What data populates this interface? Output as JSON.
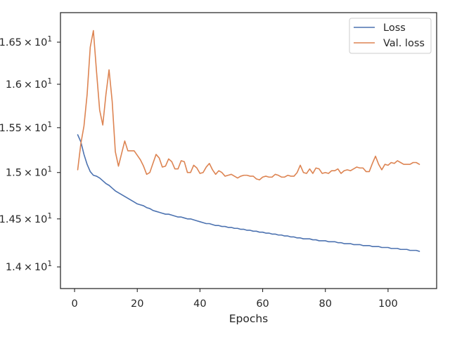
{
  "chart_data": {
    "type": "line",
    "xlabel": "Epochs",
    "ylabel": "",
    "yscale": "log",
    "xlim": [
      -4.5,
      115.5
    ],
    "ylim": [
      13.78,
      16.86
    ],
    "grid": false,
    "legend_position": "top-right",
    "x_ticks": [
      0,
      20,
      40,
      60,
      80,
      100
    ],
    "x_tick_labels": [
      "0",
      "20",
      "40",
      "60",
      "80",
      "100"
    ],
    "y_ticks": [
      14.0,
      14.5,
      15.0,
      15.5,
      16.0,
      16.5
    ],
    "y_tick_labels": [
      {
        "mantissa": "1.4",
        "base": "10",
        "exp": "1"
      },
      {
        "mantissa": "1.45",
        "base": "10",
        "exp": "1"
      },
      {
        "mantissa": "1.5",
        "base": "10",
        "exp": "1"
      },
      {
        "mantissa": "1.55",
        "base": "10",
        "exp": "1"
      },
      {
        "mantissa": "1.6",
        "base": "10",
        "exp": "1"
      },
      {
        "mantissa": "1.65",
        "base": "10",
        "exp": "1"
      }
    ],
    "x_start": 1,
    "series": [
      {
        "name": "Loss",
        "color": "#4c72b0",
        "values": [
          15.42,
          15.34,
          15.2,
          15.09,
          15.01,
          14.97,
          14.96,
          14.94,
          14.91,
          14.88,
          14.86,
          14.83,
          14.8,
          14.78,
          14.76,
          14.74,
          14.72,
          14.7,
          14.68,
          14.66,
          14.65,
          14.64,
          14.62,
          14.61,
          14.59,
          14.58,
          14.57,
          14.56,
          14.55,
          14.55,
          14.54,
          14.53,
          14.52,
          14.52,
          14.51,
          14.5,
          14.5,
          14.49,
          14.48,
          14.47,
          14.46,
          14.45,
          14.45,
          14.44,
          14.43,
          14.43,
          14.42,
          14.42,
          14.41,
          14.41,
          14.4,
          14.4,
          14.39,
          14.39,
          14.38,
          14.38,
          14.37,
          14.37,
          14.36,
          14.36,
          14.35,
          14.35,
          14.34,
          14.34,
          14.33,
          14.33,
          14.32,
          14.32,
          14.31,
          14.31,
          14.3,
          14.3,
          14.29,
          14.29,
          14.29,
          14.28,
          14.28,
          14.27,
          14.27,
          14.27,
          14.26,
          14.26,
          14.26,
          14.25,
          14.25,
          14.24,
          14.24,
          14.24,
          14.23,
          14.23,
          14.23,
          14.22,
          14.22,
          14.22,
          14.21,
          14.21,
          14.21,
          14.2,
          14.2,
          14.2,
          14.19,
          14.19,
          14.19,
          14.18,
          14.18,
          14.18,
          14.17,
          14.17,
          14.17,
          14.16
        ]
      },
      {
        "name": "Val. loss",
        "color": "#dd8452",
        "values": [
          15.03,
          15.32,
          15.52,
          15.88,
          16.44,
          16.64,
          16.15,
          15.7,
          15.53,
          15.88,
          16.17,
          15.8,
          15.23,
          15.07,
          15.21,
          15.35,
          15.24,
          15.24,
          15.24,
          15.19,
          15.14,
          15.07,
          14.98,
          15.0,
          15.1,
          15.2,
          15.16,
          15.06,
          15.07,
          15.15,
          15.12,
          15.04,
          15.04,
          15.13,
          15.12,
          15.0,
          15.0,
          15.08,
          15.05,
          14.99,
          15.0,
          15.06,
          15.1,
          15.03,
          14.98,
          15.02,
          15.0,
          14.96,
          14.97,
          14.98,
          14.96,
          14.94,
          14.96,
          14.97,
          14.97,
          14.96,
          14.96,
          14.93,
          14.92,
          14.95,
          14.96,
          14.95,
          14.95,
          14.98,
          14.97,
          14.95,
          14.95,
          14.97,
          14.96,
          14.96,
          15.0,
          15.08,
          15.0,
          14.99,
          15.04,
          14.99,
          15.05,
          15.04,
          14.99,
          15.0,
          14.99,
          15.02,
          15.02,
          15.04,
          14.99,
          15.02,
          15.03,
          15.02,
          15.04,
          15.06,
          15.05,
          15.05,
          15.01,
          15.01,
          15.1,
          15.18,
          15.09,
          15.03,
          15.09,
          15.08,
          15.11,
          15.1,
          15.13,
          15.11,
          15.09,
          15.09,
          15.09,
          15.11,
          15.11,
          15.09
        ]
      }
    ]
  }
}
